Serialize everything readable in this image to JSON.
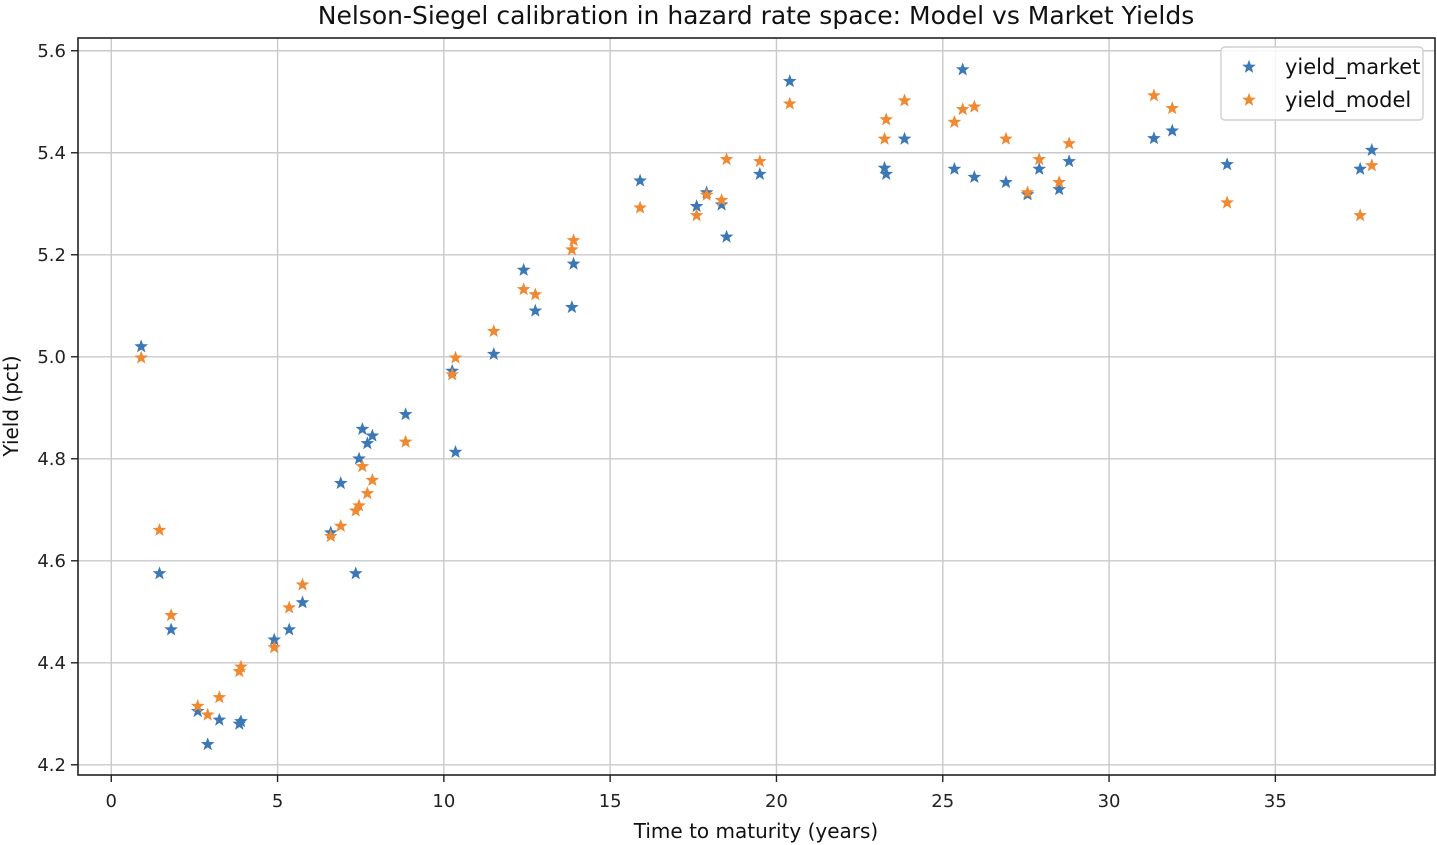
{
  "chart_data": {
    "type": "scatter",
    "title": "Nelson-Siegel calibration in hazard rate space: Model vs Market Yields",
    "xlabel": "Time to maturity (years)",
    "ylabel": "Yield (pct)",
    "xlim": [
      -1,
      39.8
    ],
    "ylim": [
      4.18,
      5.625
    ],
    "xticks": [
      0,
      5,
      10,
      15,
      20,
      25,
      30,
      35
    ],
    "xtick_labels": [
      "0",
      "5",
      "10",
      "15",
      "20",
      "25",
      "30",
      "35"
    ],
    "yticks": [
      4.2,
      4.4,
      4.6,
      4.8,
      5.0,
      5.2,
      5.4,
      5.6
    ],
    "ytick_labels": [
      "4.2",
      "4.4",
      "4.6",
      "4.8",
      "5.0",
      "5.2",
      "5.4",
      "5.6"
    ],
    "grid": true,
    "marker": "star",
    "legend_position": "upper-right",
    "series": [
      {
        "name": "yield_market",
        "color": "#3b78b5",
        "points": [
          [
            0.9,
            5.02
          ],
          [
            1.45,
            4.575
          ],
          [
            1.8,
            4.465
          ],
          [
            2.6,
            4.305
          ],
          [
            2.9,
            4.24
          ],
          [
            3.25,
            4.288
          ],
          [
            3.85,
            4.28
          ],
          [
            3.9,
            4.285
          ],
          [
            4.9,
            4.445
          ],
          [
            5.35,
            4.465
          ],
          [
            5.75,
            4.518
          ],
          [
            6.6,
            4.655
          ],
          [
            6.9,
            4.752
          ],
          [
            7.35,
            4.575
          ],
          [
            7.45,
            4.8
          ],
          [
            7.55,
            4.858
          ],
          [
            7.7,
            4.83
          ],
          [
            7.85,
            4.845
          ],
          [
            8.85,
            4.887
          ],
          [
            10.25,
            4.972
          ],
          [
            10.35,
            4.813
          ],
          [
            11.5,
            5.005
          ],
          [
            12.4,
            5.17
          ],
          [
            12.75,
            5.09
          ],
          [
            13.85,
            5.097
          ],
          [
            13.9,
            5.182
          ],
          [
            15.9,
            5.345
          ],
          [
            17.6,
            5.295
          ],
          [
            17.9,
            5.322
          ],
          [
            18.35,
            5.298
          ],
          [
            18.5,
            5.235
          ],
          [
            19.5,
            5.358
          ],
          [
            20.4,
            5.54
          ],
          [
            23.25,
            5.37
          ],
          [
            23.3,
            5.358
          ],
          [
            23.85,
            5.427
          ],
          [
            25.35,
            5.368
          ],
          [
            25.6,
            5.563
          ],
          [
            25.95,
            5.352
          ],
          [
            26.9,
            5.342
          ],
          [
            27.55,
            5.318
          ],
          [
            27.9,
            5.368
          ],
          [
            28.5,
            5.328
          ],
          [
            28.8,
            5.383
          ],
          [
            31.35,
            5.428
          ],
          [
            31.9,
            5.443
          ],
          [
            33.55,
            5.377
          ],
          [
            37.55,
            5.368
          ],
          [
            37.9,
            5.405
          ]
        ]
      },
      {
        "name": "yield_model",
        "color": "#ef8a33",
        "points": [
          [
            0.9,
            4.998
          ],
          [
            1.45,
            4.66
          ],
          [
            1.8,
            4.493
          ],
          [
            2.6,
            4.315
          ],
          [
            2.9,
            4.298
          ],
          [
            3.25,
            4.332
          ],
          [
            3.85,
            4.383
          ],
          [
            3.9,
            4.392
          ],
          [
            4.9,
            4.43
          ],
          [
            5.35,
            4.508
          ],
          [
            5.75,
            4.553
          ],
          [
            6.6,
            4.648
          ],
          [
            6.9,
            4.668
          ],
          [
            7.35,
            4.698
          ],
          [
            7.45,
            4.708
          ],
          [
            7.55,
            4.785
          ],
          [
            7.7,
            4.732
          ],
          [
            7.85,
            4.758
          ],
          [
            8.85,
            4.833
          ],
          [
            10.25,
            4.965
          ],
          [
            10.35,
            4.998
          ],
          [
            11.5,
            5.05
          ],
          [
            12.4,
            5.132
          ],
          [
            12.75,
            5.122
          ],
          [
            13.85,
            5.21
          ],
          [
            13.9,
            5.228
          ],
          [
            15.9,
            5.292
          ],
          [
            17.6,
            5.277
          ],
          [
            17.9,
            5.317
          ],
          [
            18.35,
            5.307
          ],
          [
            18.5,
            5.387
          ],
          [
            19.5,
            5.383
          ],
          [
            20.4,
            5.496
          ],
          [
            23.25,
            5.427
          ],
          [
            23.3,
            5.465
          ],
          [
            23.85,
            5.502
          ],
          [
            25.35,
            5.46
          ],
          [
            25.6,
            5.485
          ],
          [
            25.95,
            5.49
          ],
          [
            26.9,
            5.427
          ],
          [
            27.55,
            5.322
          ],
          [
            27.9,
            5.387
          ],
          [
            28.5,
            5.342
          ],
          [
            28.8,
            5.418
          ],
          [
            31.35,
            5.512
          ],
          [
            31.9,
            5.487
          ],
          [
            33.55,
            5.302
          ],
          [
            37.55,
            5.277
          ],
          [
            37.9,
            5.375
          ]
        ]
      }
    ]
  }
}
